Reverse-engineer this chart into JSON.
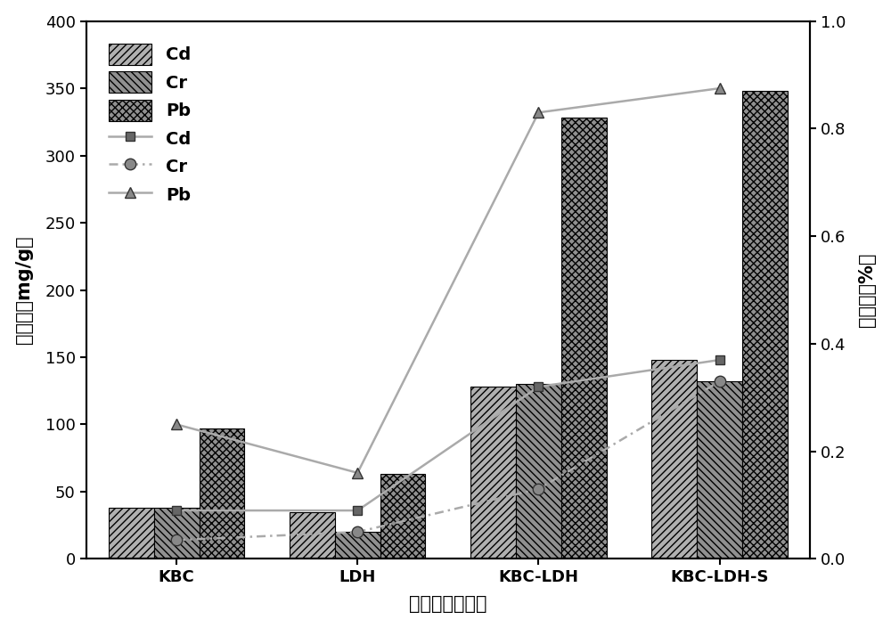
{
  "categories": [
    "KBC",
    "LDH",
    "KBC-LDH",
    "KBC-LDH-S"
  ],
  "bar_Cd": [
    38,
    35,
    128,
    148
  ],
  "bar_Cr": [
    38,
    20,
    130,
    132
  ],
  "bar_Pb": [
    97,
    63,
    328,
    348
  ],
  "line_Cd": [
    0.09,
    0.09,
    0.32,
    0.37
  ],
  "line_Cr": [
    0.035,
    0.05,
    0.13,
    0.33
  ],
  "line_Pb": [
    0.25,
    0.16,
    0.83,
    0.875
  ],
  "ylim_left": [
    0,
    400
  ],
  "ylim_right": [
    0.0,
    1.0
  ],
  "ylabel_left": "吸附量（mg/g）",
  "ylabel_right": "去除率（%）",
  "xlabel": "不同种类吸附剂",
  "bar_color_Cd": "#b0b0b0",
  "bar_color_Cr": "#909090",
  "bar_color_Pb": "#909090",
  "line_color": "#aaaaaa",
  "hatch_Cd": "////",
  "hatch_Cr": "\\\\\\\\",
  "hatch_Pb": "xxxx",
  "yticks_left": [
    0,
    50,
    100,
    150,
    200,
    250,
    300,
    350,
    400
  ],
  "yticks_right": [
    0.0,
    0.2,
    0.4,
    0.6,
    0.8,
    1.0
  ]
}
